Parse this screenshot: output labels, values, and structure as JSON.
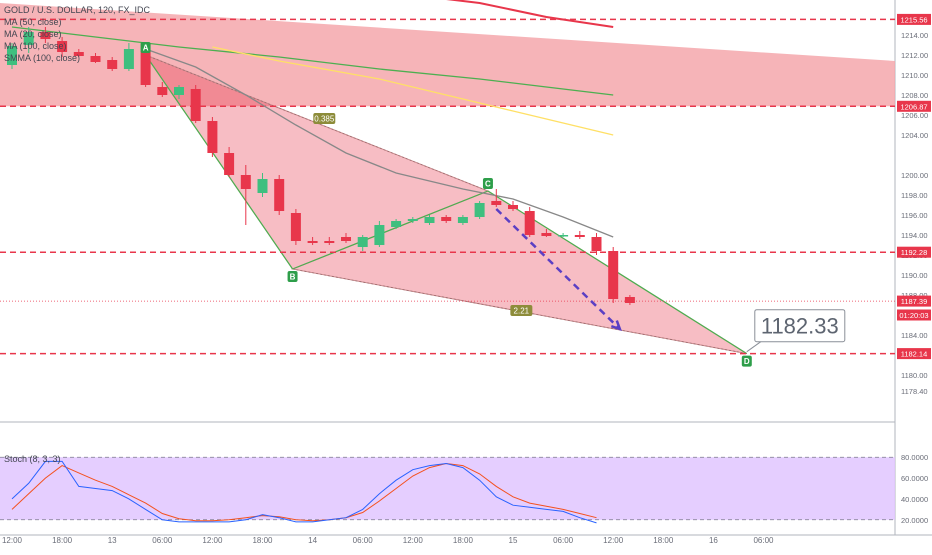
{
  "chart_data": {
    "type": "candlestick",
    "header": {
      "symbol_title": "GOLD / U.S. DOLLAR, 120, FX_IDC",
      "indicators": [
        "MA (50, close)",
        "MA (20, close)",
        "MA (100, close)",
        "SMMA (100, close)"
      ]
    },
    "price_axis": {
      "ylim": [
        1175.5,
        1217.5
      ],
      "ticks": [
        1178.4,
        1180,
        1182,
        1184,
        1186,
        1188,
        1190,
        1192,
        1194,
        1196,
        1198,
        1200,
        1204,
        1206,
        1208,
        1210,
        1212,
        1214
      ],
      "tick_labels": [
        "1178.40",
        "1180.00",
        "1182.00",
        "1184.00",
        "1186.00",
        "1188.00",
        "1190.00",
        "1192.00",
        "1194.00",
        "1196.00",
        "1198.00",
        "1200.00",
        "1204.00",
        "1206.00",
        "1208.00",
        "1210.00",
        "1212.00",
        "1214.00"
      ],
      "badges": [
        {
          "label": "1215.56",
          "value": 1215.56,
          "color": "#e8364b"
        },
        {
          "label": "1206.87",
          "value": 1206.87,
          "color": "#e8364b"
        },
        {
          "label": "1192.28",
          "value": 1192.28,
          "color": "#e8364b"
        },
        {
          "label": "1187.39",
          "value": 1187.39,
          "color": "#e8364b"
        },
        {
          "label": "01:20:03",
          "value": 1186.0,
          "color": "#e8364b"
        },
        {
          "label": "1182.14",
          "value": 1182.14,
          "color": "#e8364b"
        }
      ]
    },
    "time_axis": {
      "labels": [
        "12:00",
        "18:00",
        "13",
        "06:00",
        "12:00",
        "18:00",
        "14",
        "06:00",
        "12:00",
        "18:00",
        "15",
        "06:00",
        "12:00",
        "18:00",
        "16",
        "06:00"
      ],
      "label_index": [
        0,
        3,
        6,
        9,
        12,
        15,
        18,
        21,
        24,
        27,
        30,
        33,
        36,
        39,
        42,
        45
      ]
    },
    "candles": [
      {
        "o": 1211,
        "h": 1213.2,
        "l": 1210.6,
        "c": 1212.9
      },
      {
        "o": 1213,
        "h": 1214.8,
        "l": 1212.2,
        "c": 1214.3
      },
      {
        "o": 1214.3,
        "h": 1214.8,
        "l": 1213.2,
        "c": 1213.6
      },
      {
        "o": 1213.4,
        "h": 1213.8,
        "l": 1211.8,
        "c": 1212.3
      },
      {
        "o": 1212.3,
        "h": 1212.6,
        "l": 1211.8,
        "c": 1211.9
      },
      {
        "o": 1211.9,
        "h": 1212.2,
        "l": 1211.2,
        "c": 1211.3
      },
      {
        "o": 1211.5,
        "h": 1211.8,
        "l": 1210.4,
        "c": 1210.6
      },
      {
        "o": 1210.6,
        "h": 1213.2,
        "l": 1210.4,
        "c": 1212.6
      },
      {
        "o": 1212.4,
        "h": 1212.8,
        "l": 1208.8,
        "c": 1209.0
      },
      {
        "o": 1208.8,
        "h": 1209.3,
        "l": 1207.8,
        "c": 1208.0
      },
      {
        "o": 1208.0,
        "h": 1209.0,
        "l": 1207.6,
        "c": 1208.8
      },
      {
        "o": 1208.6,
        "h": 1209.0,
        "l": 1205.2,
        "c": 1205.4
      },
      {
        "o": 1205.4,
        "h": 1205.8,
        "l": 1201.8,
        "c": 1202.2
      },
      {
        "o": 1202.2,
        "h": 1202.8,
        "l": 1199.8,
        "c": 1200.0
      },
      {
        "o": 1200.0,
        "h": 1201.0,
        "l": 1195.0,
        "c": 1198.6
      },
      {
        "o": 1198.2,
        "h": 1200.2,
        "l": 1197.8,
        "c": 1199.6
      },
      {
        "o": 1199.6,
        "h": 1200.0,
        "l": 1196.0,
        "c": 1196.4
      },
      {
        "o": 1196.2,
        "h": 1196.6,
        "l": 1193.0,
        "c": 1193.4
      },
      {
        "o": 1193.4,
        "h": 1193.8,
        "l": 1193.0,
        "c": 1193.2
      },
      {
        "o": 1193.4,
        "h": 1193.8,
        "l": 1193.0,
        "c": 1193.2
      },
      {
        "o": 1193.8,
        "h": 1194.2,
        "l": 1193.2,
        "c": 1193.4
      },
      {
        "o": 1192.8,
        "h": 1194.0,
        "l": 1192.4,
        "c": 1193.8
      },
      {
        "o": 1193.0,
        "h": 1195.4,
        "l": 1192.8,
        "c": 1195.0
      },
      {
        "o": 1194.8,
        "h": 1195.6,
        "l": 1194.6,
        "c": 1195.4
      },
      {
        "o": 1195.4,
        "h": 1195.8,
        "l": 1195.2,
        "c": 1195.6
      },
      {
        "o": 1195.2,
        "h": 1196.0,
        "l": 1195.0,
        "c": 1195.8
      },
      {
        "o": 1195.8,
        "h": 1196.0,
        "l": 1195.2,
        "c": 1195.4
      },
      {
        "o": 1195.2,
        "h": 1196.0,
        "l": 1195.0,
        "c": 1195.8
      },
      {
        "o": 1195.8,
        "h": 1197.4,
        "l": 1195.6,
        "c": 1197.2
      },
      {
        "o": 1197.4,
        "h": 1198.6,
        "l": 1196.8,
        "c": 1197.0
      },
      {
        "o": 1197.0,
        "h": 1197.4,
        "l": 1196.4,
        "c": 1196.6
      },
      {
        "o": 1196.4,
        "h": 1196.8,
        "l": 1193.8,
        "c": 1194.0
      },
      {
        "o": 1194.2,
        "h": 1194.6,
        "l": 1193.8,
        "c": 1193.9
      },
      {
        "o": 1194.0,
        "h": 1194.2,
        "l": 1193.8,
        "c": 1194.0
      },
      {
        "o": 1194.0,
        "h": 1194.4,
        "l": 1193.6,
        "c": 1193.8
      },
      {
        "o": 1193.8,
        "h": 1194.2,
        "l": 1192.0,
        "c": 1192.4
      },
      {
        "o": 1192.4,
        "h": 1192.8,
        "l": 1187.2,
        "c": 1187.6
      },
      {
        "o": 1187.8,
        "h": 1188.0,
        "l": 1187.0,
        "c": 1187.2
      }
    ],
    "moving_averages": [
      {
        "name": "MA (50, close)",
        "color": "#4caf50",
        "points": [
          [
            0,
            1214.8
          ],
          [
            4,
            1214.0
          ],
          [
            10,
            1212.8
          ],
          [
            16,
            1211.8
          ],
          [
            22,
            1210.6
          ],
          [
            28,
            1209.6
          ],
          [
            32,
            1208.8
          ],
          [
            36,
            1208.0
          ]
        ]
      },
      {
        "name": "MA (100, close)",
        "color": "#ffe066",
        "points": [
          [
            12,
            1212.8
          ],
          [
            16,
            1211.4
          ],
          [
            22,
            1209.6
          ],
          [
            26,
            1208.0
          ],
          [
            30,
            1206.4
          ],
          [
            36,
            1204.0
          ]
        ]
      },
      {
        "name": "MA (20, close)",
        "color": "#888888",
        "points": [
          [
            8,
            1212.6
          ],
          [
            11,
            1210.8
          ],
          [
            14,
            1208.0
          ],
          [
            17,
            1205.0
          ],
          [
            20,
            1202.2
          ],
          [
            23,
            1200.2
          ],
          [
            27,
            1198.6
          ],
          [
            30,
            1197.6
          ],
          [
            33,
            1195.8
          ],
          [
            36,
            1193.8
          ]
        ]
      },
      {
        "name": "SMMA (100, close)",
        "color": "#e8364b",
        "points": [
          [
            24,
            1218.0
          ],
          [
            28,
            1217.2
          ],
          [
            32,
            1215.8
          ],
          [
            36,
            1214.8
          ]
        ]
      }
    ],
    "channel_band": {
      "color": "#f4a7ab",
      "top_left": 1217.2,
      "top_right": 1211.4,
      "bottom": 1206.87
    },
    "harmonic_pattern": {
      "points": [
        {
          "label": "A",
          "x": 8.0,
          "y": 1212.0
        },
        {
          "label": "B",
          "x": 16.8,
          "y": 1190.6
        },
        {
          "label": "C",
          "x": 28.5,
          "y": 1198.4
        },
        {
          "label": "D",
          "x": 44.0,
          "y": 1182.14
        }
      ],
      "ratios": [
        {
          "label": "0.385",
          "x": 18.7,
          "y": 1205.6
        },
        {
          "label": "2.21",
          "x": 30.5,
          "y": 1186.4
        }
      ],
      "projection_arrow": {
        "from": [
          29.0,
          1196.6
        ],
        "to": [
          36.4,
          1184.6
        ],
        "color": "#5b3fc4"
      }
    },
    "target_label": {
      "text": "1182.33",
      "x": 44.0,
      "y": 1182.33
    },
    "horizontal_levels": [
      1215.56,
      1206.87,
      1192.28,
      1182.14
    ],
    "current_price_line": 1187.39,
    "stochastic": {
      "title": "Stoch (8, 3, 3)",
      "ylim": [
        15,
        85
      ],
      "ticks": [
        20,
        40,
        60,
        80
      ],
      "tick_labels": [
        "20.0000",
        "40.0000",
        "60.0000",
        "80.0000"
      ],
      "k_line": {
        "color": "#2962ff",
        "points": [
          [
            0,
            40
          ],
          [
            1,
            55
          ],
          [
            2,
            76
          ],
          [
            3,
            76
          ],
          [
            4,
            52
          ],
          [
            5,
            50
          ],
          [
            6,
            48
          ],
          [
            7,
            40
          ],
          [
            8,
            30
          ],
          [
            9,
            20
          ],
          [
            10,
            18
          ],
          [
            11,
            18
          ],
          [
            12,
            18
          ],
          [
            13,
            18
          ],
          [
            14,
            20
          ],
          [
            15,
            25
          ],
          [
            16,
            22
          ],
          [
            17,
            18
          ],
          [
            18,
            18
          ],
          [
            19,
            20
          ],
          [
            20,
            22
          ],
          [
            21,
            30
          ],
          [
            22,
            45
          ],
          [
            23,
            58
          ],
          [
            24,
            68
          ],
          [
            25,
            72
          ],
          [
            26,
            74
          ],
          [
            27,
            70
          ],
          [
            28,
            58
          ],
          [
            29,
            42
          ],
          [
            30,
            34
          ],
          [
            31,
            32
          ],
          [
            32,
            30
          ],
          [
            33,
            28
          ],
          [
            34,
            22
          ],
          [
            35,
            17
          ]
        ]
      },
      "d_line": {
        "color": "#f4511e",
        "points": [
          [
            0,
            30
          ],
          [
            1,
            45
          ],
          [
            2,
            60
          ],
          [
            3,
            72
          ],
          [
            4,
            65
          ],
          [
            5,
            58
          ],
          [
            6,
            52
          ],
          [
            7,
            44
          ],
          [
            8,
            36
          ],
          [
            9,
            26
          ],
          [
            10,
            21
          ],
          [
            11,
            19
          ],
          [
            12,
            19
          ],
          [
            13,
            20
          ],
          [
            14,
            22
          ],
          [
            15,
            24
          ],
          [
            16,
            23
          ],
          [
            17,
            20
          ],
          [
            18,
            19
          ],
          [
            19,
            20
          ],
          [
            20,
            22
          ],
          [
            21,
            27
          ],
          [
            22,
            38
          ],
          [
            23,
            50
          ],
          [
            24,
            62
          ],
          [
            25,
            70
          ],
          [
            26,
            74
          ],
          [
            27,
            72
          ],
          [
            28,
            64
          ],
          [
            29,
            52
          ],
          [
            30,
            42
          ],
          [
            31,
            36
          ],
          [
            32,
            33
          ],
          [
            33,
            30
          ],
          [
            34,
            26
          ],
          [
            35,
            22
          ]
        ]
      },
      "band_color": "#e1c6ff"
    }
  }
}
